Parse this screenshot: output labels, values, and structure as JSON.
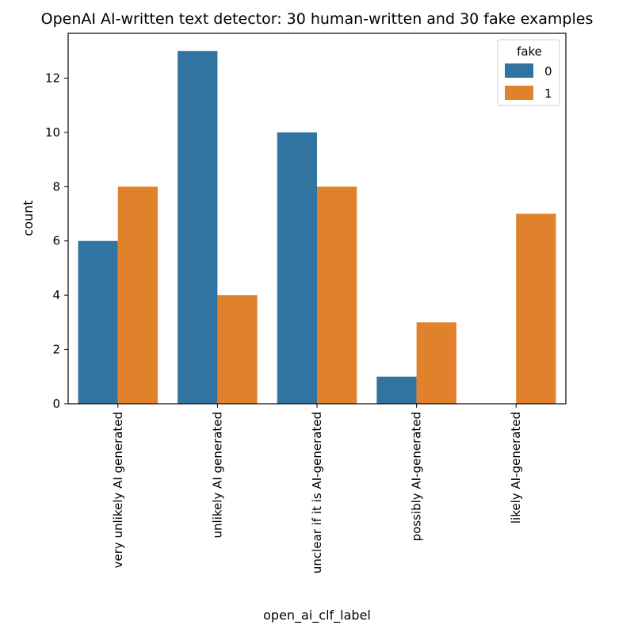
{
  "chart_data": {
    "type": "bar",
    "title": "OpenAI AI-written text detector: 30 human-written and 30 fake examples",
    "xlabel": "open_ai_clf_label",
    "ylabel": "count",
    "categories": [
      "very unlikely AI generated",
      "unlikely AI generated",
      "unclear if it is AI-generated",
      "possibly AI-generated",
      "likely AI-generated"
    ],
    "series": [
      {
        "name": "0",
        "color": "#3274a1",
        "values": [
          6,
          13,
          10,
          1,
          0
        ]
      },
      {
        "name": "1",
        "color": "#e1812c",
        "values": [
          8,
          4,
          8,
          3,
          7
        ]
      }
    ],
    "ylim": [
      0,
      13.65
    ],
    "yticks": [
      0,
      2,
      4,
      6,
      8,
      10,
      12
    ],
    "legend": {
      "title": "fake",
      "position": "top-right"
    },
    "grid": false
  }
}
